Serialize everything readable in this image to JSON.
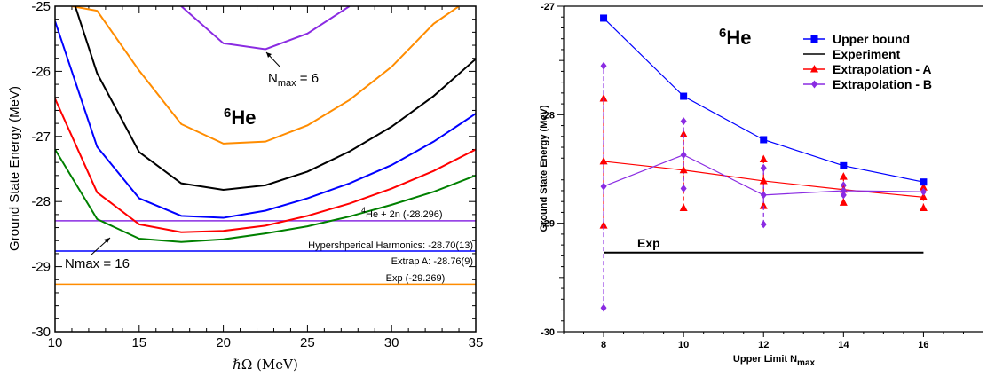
{
  "chart_data": [
    {
      "type": "line",
      "ylabel": "Ground State Energy (MeV)",
      "xlabel": "ℏΩ (MeV)",
      "xlim": [
        10,
        35
      ],
      "ylim": [
        -30,
        -25
      ],
      "xticks": [
        "10",
        "15",
        "20",
        "25",
        "30",
        "35"
      ],
      "yticks": [
        "-25",
        "-26",
        "-27",
        "-28",
        "-29",
        "-30"
      ],
      "nucleus": {
        "mass": "6",
        "symbol": "He"
      },
      "series": [
        {
          "color": "#8a2be2",
          "x": [
            17.5,
            20,
            22.5,
            25,
            27.5
          ],
          "y": [
            -25,
            -25.57,
            -25.66,
            -25.42,
            -25
          ]
        },
        {
          "color": "#ff8c00",
          "x": [
            11,
            12.5,
            15,
            17.5,
            20,
            22.5,
            25,
            27.5,
            30,
            32.5,
            34
          ],
          "y": [
            -25,
            -25.07,
            -25.99,
            -26.81,
            -27.11,
            -27.08,
            -26.83,
            -26.44,
            -25.93,
            -25.27,
            -25
          ]
        },
        {
          "color": "#000000",
          "x": [
            11.2,
            12.5,
            15,
            17.5,
            20,
            22.5,
            25,
            27.5,
            30,
            32.5,
            35
          ],
          "y": [
            -25,
            -26.03,
            -27.24,
            -27.72,
            -27.82,
            -27.75,
            -27.54,
            -27.23,
            -26.85,
            -26.38,
            -25.81
          ]
        },
        {
          "color": "#0000ff",
          "x": [
            10,
            12.5,
            15,
            17.5,
            20,
            22.5,
            25,
            27.5,
            30,
            32.5,
            35
          ],
          "y": [
            -25.23,
            -27.16,
            -27.95,
            -28.22,
            -28.25,
            -28.14,
            -27.95,
            -27.72,
            -27.44,
            -27.08,
            -26.65
          ]
        },
        {
          "color": "#ff0000",
          "x": [
            10,
            12.5,
            15,
            17.5,
            20,
            22.5,
            25,
            27.5,
            30,
            32.5,
            35
          ],
          "y": [
            -26.42,
            -27.86,
            -28.35,
            -28.47,
            -28.45,
            -28.37,
            -28.22,
            -28.03,
            -27.8,
            -27.53,
            -27.2
          ]
        },
        {
          "color": "#008000",
          "x": [
            10,
            12.5,
            15,
            17.5,
            20,
            22.5,
            25,
            27.5,
            30,
            32.5,
            35
          ],
          "y": [
            -27.2,
            -28.27,
            -28.57,
            -28.62,
            -28.58,
            -28.49,
            -28.38,
            -28.23,
            -28.05,
            -27.85,
            -27.6
          ]
        }
      ],
      "hlines": [
        {
          "color": "#8a2be2",
          "y": -28.296,
          "label_prefix": "4",
          "label": "He + 2n (-28.296)"
        },
        {
          "color": "#0000ff",
          "y": -28.76,
          "label": "Hypershperical Harmonics: -28.70(13)",
          "label2": "Extrap A: -28.76(9)"
        },
        {
          "color": "#ff8c00",
          "y": -29.269,
          "label": "Exp (-29.269)"
        }
      ],
      "annotations": {
        "nmax6_prefix": "N",
        "nmax6_sub": "max",
        "nmax6_suffix": " = 6",
        "nmax16": "Nmax = 16"
      }
    },
    {
      "type": "line",
      "ylabel": "Ground State Energy (MeV)",
      "xlabel_prefix": "Upper Limit N",
      "xlabel_sub": "max",
      "xlim": [
        7,
        17.5
      ],
      "ylim": [
        -30,
        -27
      ],
      "xticks": [
        "8",
        "10",
        "12",
        "14",
        "16"
      ],
      "yticks": [
        "-27",
        "-28",
        "-29",
        "-30"
      ],
      "nucleus": {
        "mass": "6",
        "symbol": "He"
      },
      "exp_label": "Exp",
      "legend": [
        "Upper bound",
        "Experiment",
        "Extrapolation - A",
        "Extrapolation - B"
      ],
      "series": [
        {
          "name": "Upper bound",
          "color": "#0000ff",
          "marker": "square",
          "x": [
            8,
            10,
            12,
            14,
            16
          ],
          "y": [
            -27.11,
            -27.83,
            -28.23,
            -28.47,
            -28.62
          ]
        },
        {
          "name": "Experiment",
          "color": "#000000",
          "x": [
            8,
            16
          ],
          "y": [
            -29.27,
            -29.27
          ]
        },
        {
          "name": "Extrapolation - A",
          "color": "#ff0000",
          "marker": "triangle",
          "x": [
            8,
            10,
            12,
            14,
            16
          ],
          "y": [
            -28.43,
            -28.51,
            -28.61,
            -28.69,
            -28.76
          ],
          "err_low": [
            -29.02,
            -28.86,
            -28.84,
            -28.81,
            -28.86
          ],
          "err_high": [
            -27.85,
            -28.18,
            -28.41,
            -28.57,
            -28.67
          ]
        },
        {
          "name": "Extrapolation - B",
          "color": "#8a2be2",
          "marker": "diamond",
          "x": [
            8,
            10,
            12,
            14,
            16
          ],
          "y": [
            -28.66,
            -28.37,
            -28.74,
            -28.7,
            -28.71
          ],
          "err_low": [
            -29.78,
            -28.68,
            -29.01,
            -28.74,
            -28.71
          ],
          "err_high": [
            -27.55,
            -28.06,
            -28.49,
            -28.65,
            -28.71
          ]
        }
      ]
    }
  ]
}
